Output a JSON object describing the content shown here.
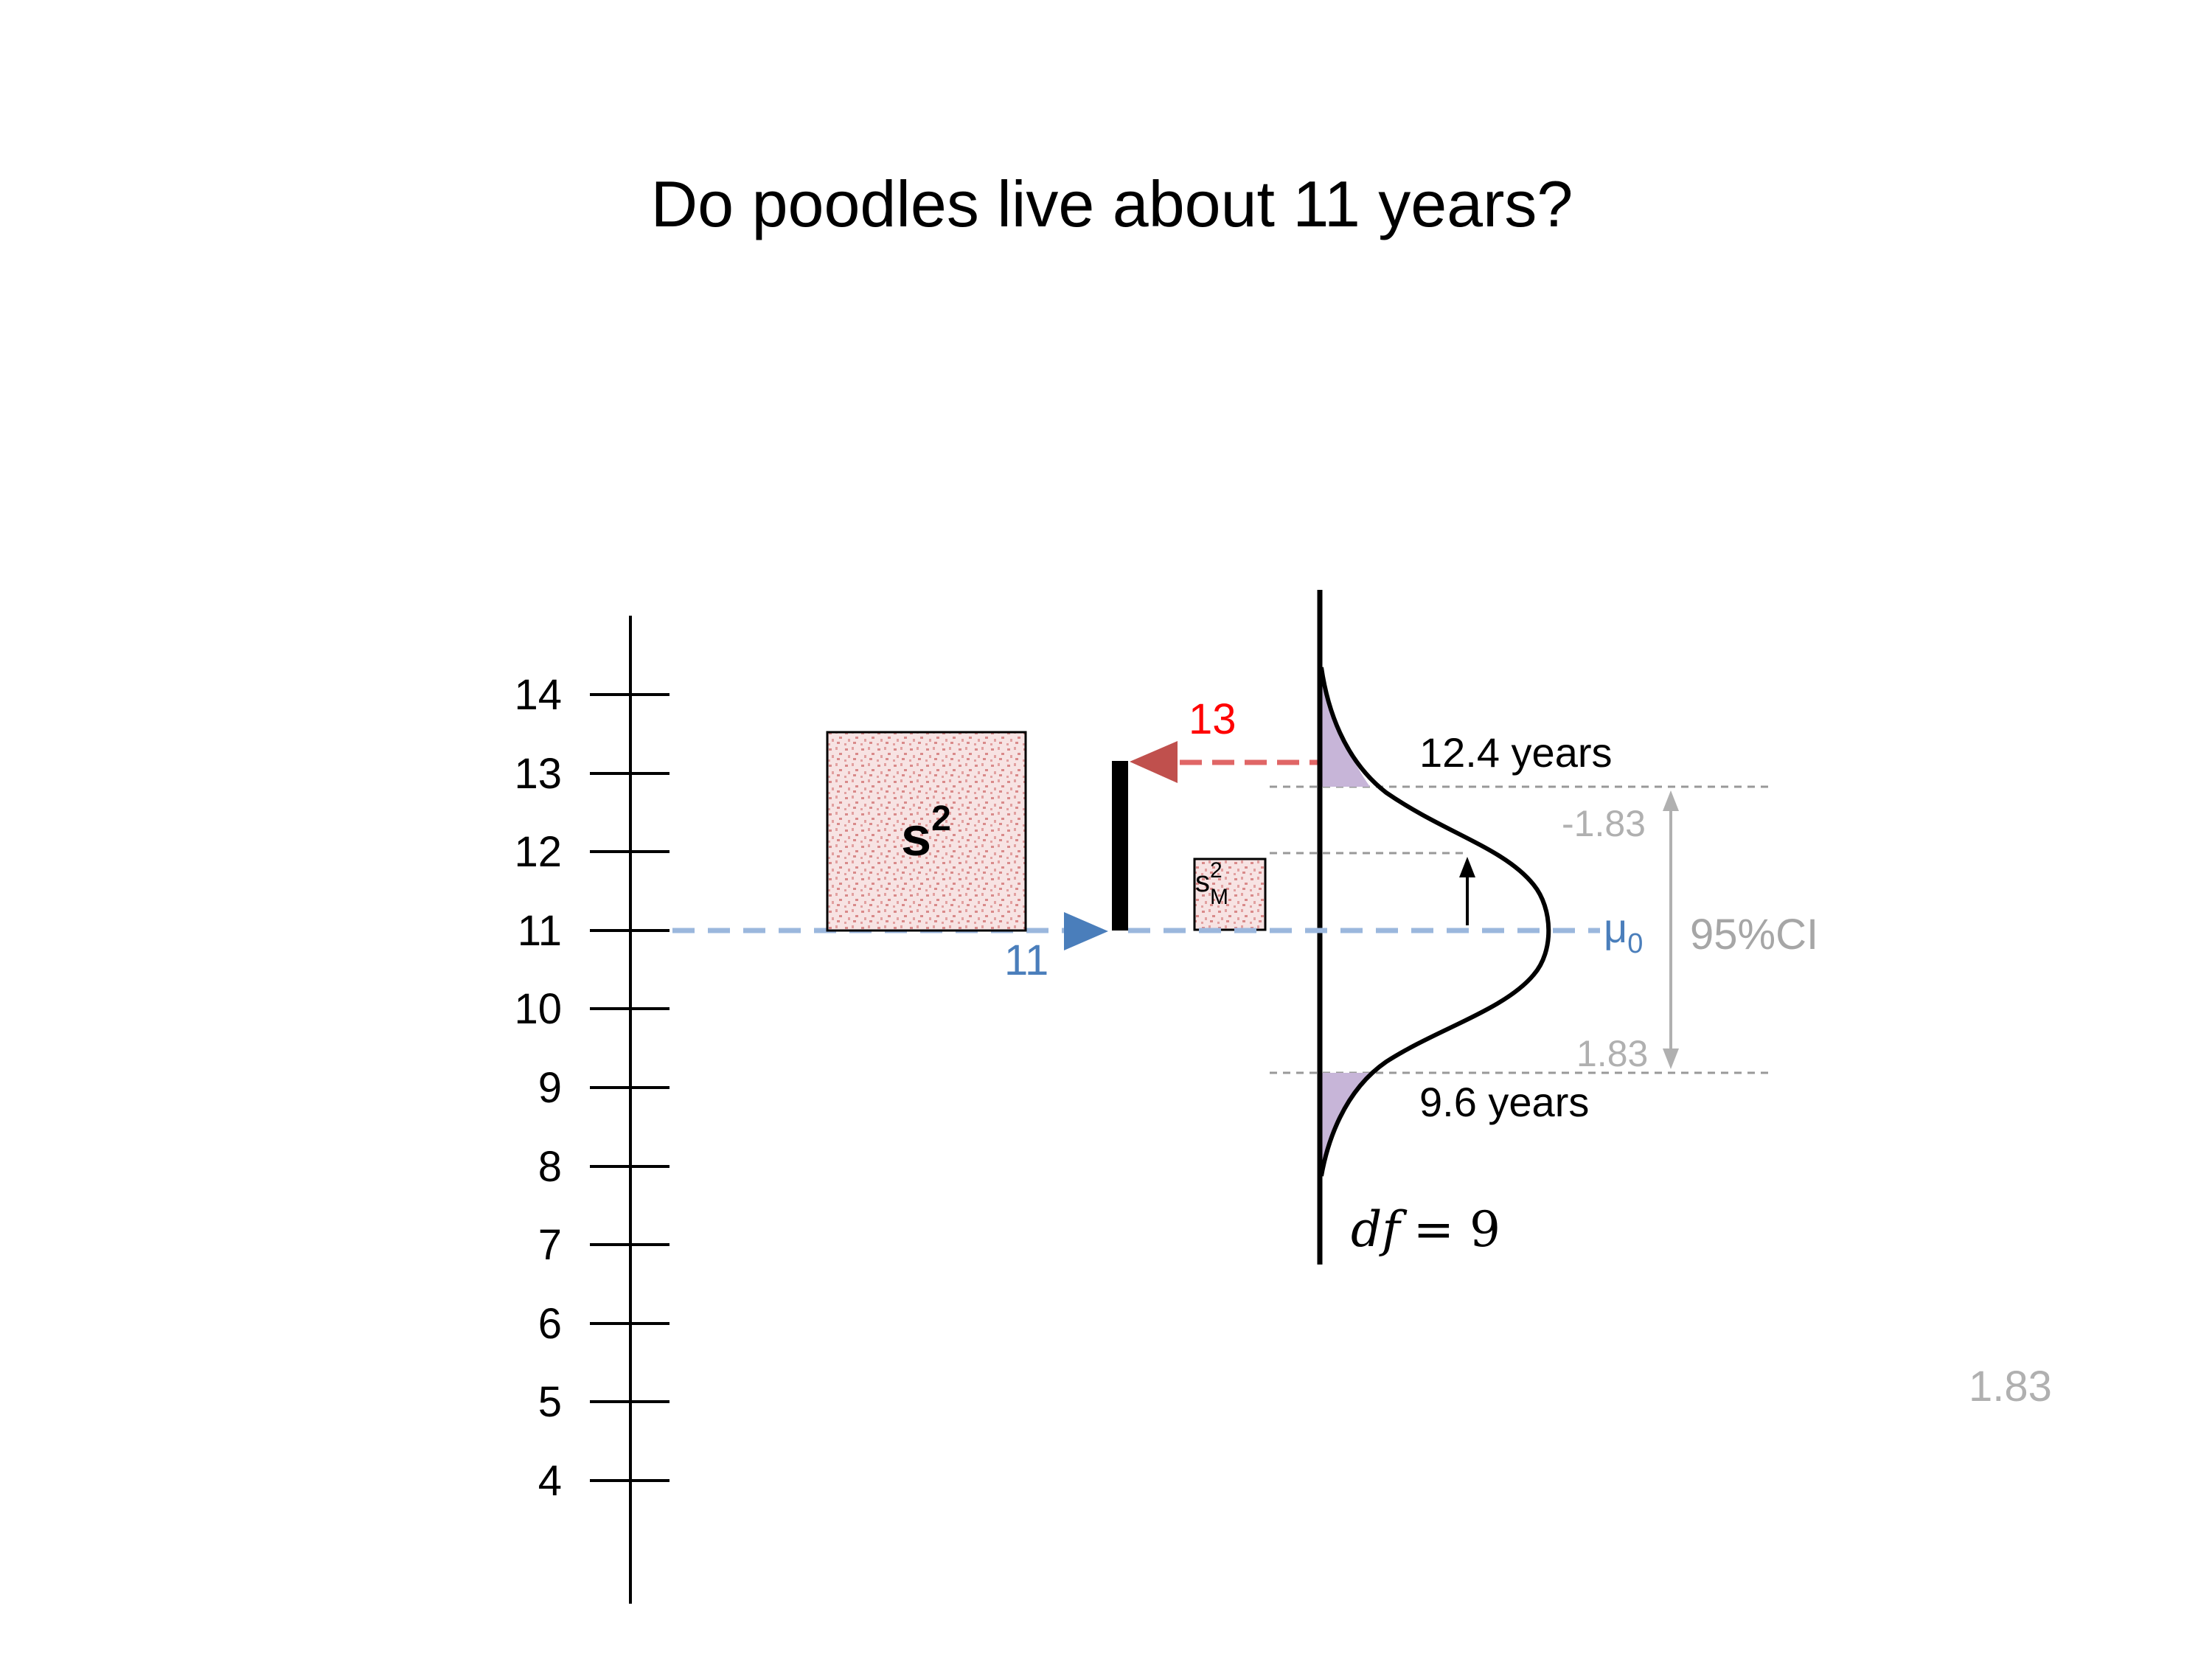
{
  "title": "Do poodles live about 11 years?",
  "axis": {
    "ticks": [
      "14",
      "13",
      "12",
      "11",
      "10",
      "9",
      "8",
      "7",
      "6",
      "5",
      "4"
    ]
  },
  "sample_variance_label": {
    "base": "s",
    "sup": "2"
  },
  "sem_variance_label": {
    "base": "s",
    "sub": "M",
    "sup": "2"
  },
  "sample_mean": {
    "value": "13",
    "color": "#ff0000"
  },
  "hypothesized_mean": {
    "value": "11",
    "color": "#4a7ebb"
  },
  "mu0_label": {
    "base": "μ",
    "sub": "0"
  },
  "ci_label": "95%CI",
  "upper_bound_label": "12.4 years",
  "lower_bound_label": "9.6 years",
  "upper_t_label": "-1.83",
  "lower_t_label": "1.83",
  "df_label": {
    "text": "df",
    "equals": "= 9"
  },
  "corner_value": "1.83",
  "colors": {
    "variance_box_fill": "#f6dede",
    "variance_box_speckle": "#d98a8a",
    "tail_fill": "#c7b5d8",
    "sample_arrow": "#c0504d",
    "sample_dash": "#e06666",
    "null_arrow": "#4a7ebb",
    "null_dash": "#9bb7dd",
    "gray": "#b0b0b0"
  }
}
